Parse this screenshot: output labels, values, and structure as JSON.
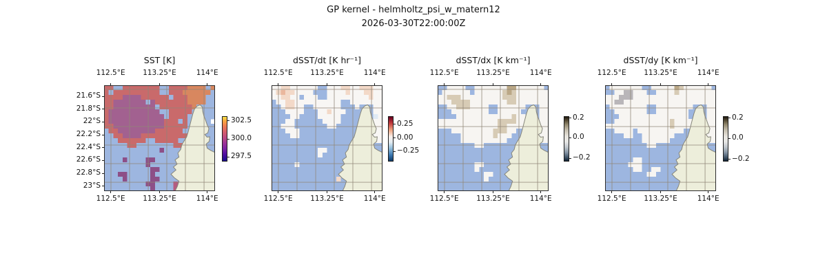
{
  "figure": {
    "title_line1": "GP kernel - helmholtz_psi_w_matern12",
    "title_line2": "2026-03-30T22:00:00Z"
  },
  "chart_data": {
    "type": "heatmap",
    "description": "Four gridded map panels over the same coastal region (NW Australia, Exmouth cape), masked cells shown light blue, land cream",
    "x_axis": {
      "tick_labels": [
        "112.5°E",
        "113.25°E",
        "114°E"
      ],
      "tick_pos": [
        0.06,
        0.5,
        0.93
      ],
      "labels_on_top_and_bottom": true
    },
    "y_axis": {
      "tick_labels": [
        "21.6°S",
        "21.8°S",
        "22°S",
        "22.2°S",
        "22.4°S",
        "22.6°S",
        "22.8°S",
        "23°S"
      ],
      "tick_pos": [
        0.104,
        0.225,
        0.347,
        0.468,
        0.59,
        0.711,
        0.833,
        0.954
      ],
      "shown_on_first_panel_only": true
    },
    "shared_colors": {
      "masked_ocean": "#9db6e0",
      "land": "#edeedb",
      "coastline": "#85857a",
      "graticule": "rgba(145,135,120,0.6)",
      "panel_border": "#2b2b2b"
    },
    "graticule": {
      "v_pos": [
        0.062,
        0.23,
        0.398,
        0.565,
        0.733,
        0.901
      ],
      "h_pos": [
        0.039,
        0.214,
        0.39,
        0.565,
        0.74,
        0.916
      ]
    },
    "panels": [
      {
        "title": "SST [K]",
        "colorbar": {
          "ticks": [
            {
              "label": "302.5",
              "pos": 0.1
            },
            {
              "label": "300.0",
              "pos": 0.5
            },
            {
              "label": "297.5",
              "pos": 0.9
            }
          ],
          "gradient": [
            [
              0,
              "#f5e348"
            ],
            [
              8,
              "#fbac3d"
            ],
            [
              20,
              "#ef7e50"
            ],
            [
              33,
              "#d75f69"
            ],
            [
              46,
              "#bd4a80"
            ],
            [
              60,
              "#9c3397"
            ],
            [
              73,
              "#7a21a4"
            ],
            [
              85,
              "#4f0da0"
            ],
            [
              100,
              "#190c8c"
            ]
          ]
        },
        "palette": {
          "o": "#d8875f",
          "r": "#c96a6b",
          "R": "#c25b76",
          "p": "#a26190",
          "P": "#8d4f87",
          "m": "#b55c80",
          "w": "#f3f0ec"
        },
        "grid": [
          "rrBBrrrrrrrrBBrrrrooooBo",
          "rBrrrrrrrrrrBBrrrooooooB",
          "rrrrpppprrrrrrBrrrooooBB",
          "rrpppppppBprrrrrrrooooBB",
          "rrpppppppppBrrrrrrroBBBB",
          "rpppppppppppBBrrrrrBBBBB",
          "rppppppppppppBrrrrBBBBBB",
          "rpppppppppppprrrBrBBBBB",
          "rrppppppppppprrrrrBBBBBB",
          "BrrpppppppprrrrrrBBBBBBB",
          "BBrrpppprrrrrrrrrrBBBBBB",
          "BBBrrrrrrBBrrrrrBBBBBBBB",
          "BBBBBrrBBBBBBBBrrBBBBBBB",
          "BBBBBBBBBBBBPBBBBBBBBBBB",
          "BBBBBBBBBBBBBBBBBBBBBBBB",
          "BBBBPBBBBPPBBBBBBBBBBBBB",
          "BBBBBBBBBPBBBBBBmBBBBBBB",
          "BBBBBBBBBBPPBBBBmBBBBBBB",
          "BBBPPBBBBBPBBBBBmBBBBBBB",
          "BBBBPBBBBBPPBBBBBBBBBBBB",
          "BBBBBBBBBPPBBBBmBBBBBBBB",
          "BBBBBBBBBBPBBBBmBBBBBBBB"
        ]
      },
      {
        "title": "dSST/dt [K hr⁻¹]",
        "colorbar": {
          "ticks": [
            {
              "label": "0.25",
              "pos": 0.18
            },
            {
              "label": "0.00",
              "pos": 0.48
            },
            {
              "label": "−0.25",
              "pos": 0.78
            }
          ],
          "gradient": [
            [
              0,
              "#67001f"
            ],
            [
              14,
              "#c0383b"
            ],
            [
              30,
              "#f0a581"
            ],
            [
              45,
              "#f9f1ec"
            ],
            [
              58,
              "#e3ecf2"
            ],
            [
              72,
              "#8fbbd9"
            ],
            [
              87,
              "#3a76b0"
            ],
            [
              100,
              "#0b3a68"
            ]
          ]
        },
        "palette": {
          "k": "#f3d9c8",
          "K": "#eab79d",
          "b": "#dfe9f4",
          "w": "#f8f6f4"
        },
        "grid": [
          "wwkkwwwwwwBBwwwkkwwkkkww",
          "wkKkkwwwwBBBwwwwkwwwkkww",
          "wwkkwwBwwwBBwwwwwwwwwkww",
          "BwwkkwwwwwwwwwwBBwwwwwww",
          "BBwkkwwBBwwwwwwBBBwBBBww",
          "BBBwwwwBBBwwkwwwBBBBBBww",
          "BBBBwwBBBBwwwwwBBBBBBBbw",
          "BBBwwBBBBBBwwwwBBBBBBwww",
          "BBwwwBBBBBBBwwBBBBBBBwww",
          "BBBwwwBBBBBBBBBBBBBBwwww",
          "BBBBwwBBBBBBBBBBBBBBwwww",
          "BBBBBBBBBBBBBBBBBBBwwkww",
          "BBBBBBBBBBBBBBBBBBkwBBBB",
          "BBBBBBBBBBwwBBBBBBkBBBBB",
          "BBBBBBBBBBwBBBBBBBBBBBBB",
          "BBBBBBBBBBBBBBBBBBBBBBBB",
          "BBBBBwBBBBBBBBBBBBBBBBBB",
          "BBBBBBBBBBBBBBBBwBBBBBBB",
          "BBBBBBBBBBBBBBBBBBBBBBBB",
          "BBBBBBBBBBBBBBkBBBBBBBBB",
          "BBBBBBBBBBBBBBBBBBBBBBBB",
          "BBBBBBBBBBBBBBBBBBBBBBBB"
        ]
      },
      {
        "title": "dSST/dx [K km⁻¹]",
        "colorbar": {
          "ticks": [
            {
              "label": "0.2",
              "pos": 0.04
            },
            {
              "label": "0.0",
              "pos": 0.47
            },
            {
              "label": "−0.2",
              "pos": 0.93
            }
          ],
          "gradient": [
            [
              0,
              "#201910"
            ],
            [
              8,
              "#544a34"
            ],
            [
              18,
              "#948a70"
            ],
            [
              30,
              "#c5beae"
            ],
            [
              44,
              "#e7e4dd"
            ],
            [
              56,
              "#e8e8e6"
            ],
            [
              68,
              "#c2c8ce"
            ],
            [
              80,
              "#8a99a8"
            ],
            [
              91,
              "#465a6e"
            ],
            [
              100,
              "#102134"
            ]
          ]
        },
        "palette": {
          "t": "#d7cbb5",
          "T": "#bba887",
          "g": "#ddd6c9",
          "w": "#f7f5f2"
        },
        "grid": [
          "BBwwwwBBwwwwwwwTTwwwwwwB",
          "BwwwwwwBwwwwwwtTtwwwwwww",
          "wwtttwwwwwwwwwtttwwwwwww",
          "wwwttttwwwwwwwwttwwwwwww",
          "BBwwtttwwwwBBwwwwwwBBBww",
          "BBBwwwwwwwwBBwwwwwBBBBww",
          "BBBBwwwwwwwwwwwwtwwBBBww",
          "wwwwwwwwwwwwwttttwwBBBww",
          "wwwwwwwwwwwwwttwwwwBBwww",
          "BBBwwwwwwwwwtttwwBBBBwww",
          "BBBBBwwwwwwwtwwwBBBBBwww",
          "BBBBBwwwwwwwwwwBBBBBBBww",
          "BBBBBBBBwwBBBBBBBBBBBBBB",
          "BBBBBBBBBBBBBBBBBBBBBBBB",
          "BBBBBBBBBBBBBBBBBBBBBBBB",
          "BBBBBBBBBBBBBBBBBBBBBBBB",
          "BBBBBBBBwwBBBBBBBBBBBBBB",
          "BBBBBBBBwBBBBBBBBBBBBBBB",
          "BBBBBBBBBBwwBBBBBBBBBBBB",
          "BBBBBBBBBBwBBBBBBBBBBBBB",
          "BBBBBBBBBBBBBBBBBBBBBBBB",
          "BBBBBBBBBBBBBBBBBBBBBBBB"
        ]
      },
      {
        "title": "dSST/dy [K km⁻¹]",
        "colorbar": {
          "ticks": [
            {
              "label": "0.2",
              "pos": 0.04
            },
            {
              "label": "0.0",
              "pos": 0.49
            },
            {
              "label": "−0.2",
              "pos": 0.95
            }
          ],
          "gradient": [
            [
              0,
              "#201910"
            ],
            [
              8,
              "#544a34"
            ],
            [
              18,
              "#948a70"
            ],
            [
              30,
              "#c5beae"
            ],
            [
              44,
              "#e7e4dd"
            ],
            [
              56,
              "#e8e8e6"
            ],
            [
              68,
              "#c2c8ce"
            ],
            [
              80,
              "#8a99a8"
            ],
            [
              91,
              "#465a6e"
            ],
            [
              100,
              "#102134"
            ]
          ]
        },
        "palette": {
          "t": "#d7cbb5",
          "T": "#bba887",
          "d": "#b9b6b9",
          "w": "#f7f5f2"
        },
        "grid": [
          "BwwwwwwwBBwwwwwTtwwwwwwB",
          "BBwwddwwwBBwwwwtwwwwwwww",
          "wwwdddwwwwwwwwwwwwwwwwww",
          "wwddwwwwwwwwwwwwwwwwwwww",
          "BwwwwwwwwBBwwwwwwwwBBBww",
          "BBwwwwwwwBBwwwwwwwBBBBww",
          "BBBwwwwwwwwwwwwwwwBBBBww",
          "BBwwwwwwwwwwwwtwwwwBBwww",
          "wwwwwwwwwwwwwwtwwwwwwwww",
          "BBwwwwBwwwwwwwwwwBBBwwww",
          "BBBBwwBBwwwwwwwBBBBBwwww",
          "BBBBBBBBwwwwwwBBBBBBBBww",
          "BBBBBBBBBwwBBBBBBBBBBBBB",
          "BBBBBBBBBBBBBBBBBBBBBBBB",
          "BBBBBBBBBBBBBBBBBBBBBBBB",
          "BBBBBBwwBBBBBBBBBBBBBBBB",
          "BBBBBwwwBBBBBBBBBBBBBBBB",
          "BBBBBBwwBBwwBBBBBBBBBBBB",
          "BBBBBBBBBwwBBBBBBBBBBBBB",
          "BBBBBBBBBBBBBBBBBBBBBBBB",
          "BBBBBBBBBBBBBBBBBBBBBBBB",
          "BBBBBBBBBBBBBBBBBBBBBBBB"
        ]
      }
    ]
  }
}
